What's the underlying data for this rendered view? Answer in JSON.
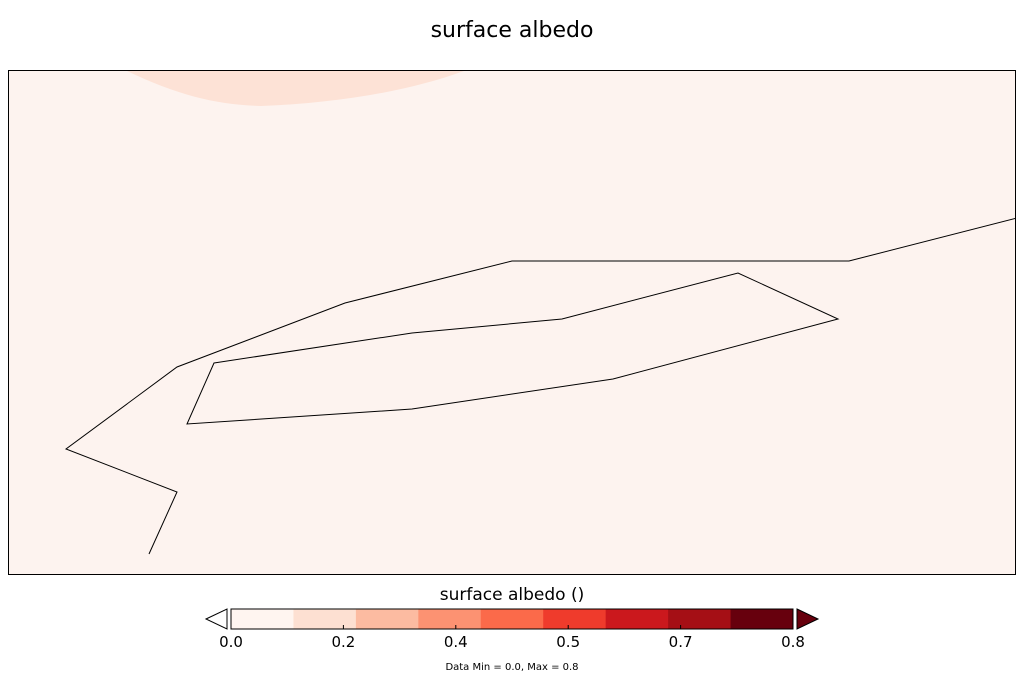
{
  "title": "surface albedo",
  "map": {
    "variable": "surface albedo",
    "background_color": "#fdf3ef",
    "highlight_color": "#fde2d6",
    "line_color": "#000000"
  },
  "colorbar": {
    "label": "surface albedo ()",
    "colors": [
      "#fff5f0",
      "#fde0d2",
      "#fcbba1",
      "#fc9272",
      "#fb6a4a",
      "#ef3b2c",
      "#cb181d",
      "#a50f15",
      "#67000d"
    ],
    "under_color": "#ffffff",
    "over_color": "#67000d",
    "extend": "both",
    "range": [
      0.0,
      0.8
    ],
    "tick_labels": [
      "0.0",
      "0.2",
      "0.4",
      "0.5",
      "0.7",
      "0.8"
    ]
  },
  "stats_text": "Data Min = 0.0, Max = 0.8"
}
